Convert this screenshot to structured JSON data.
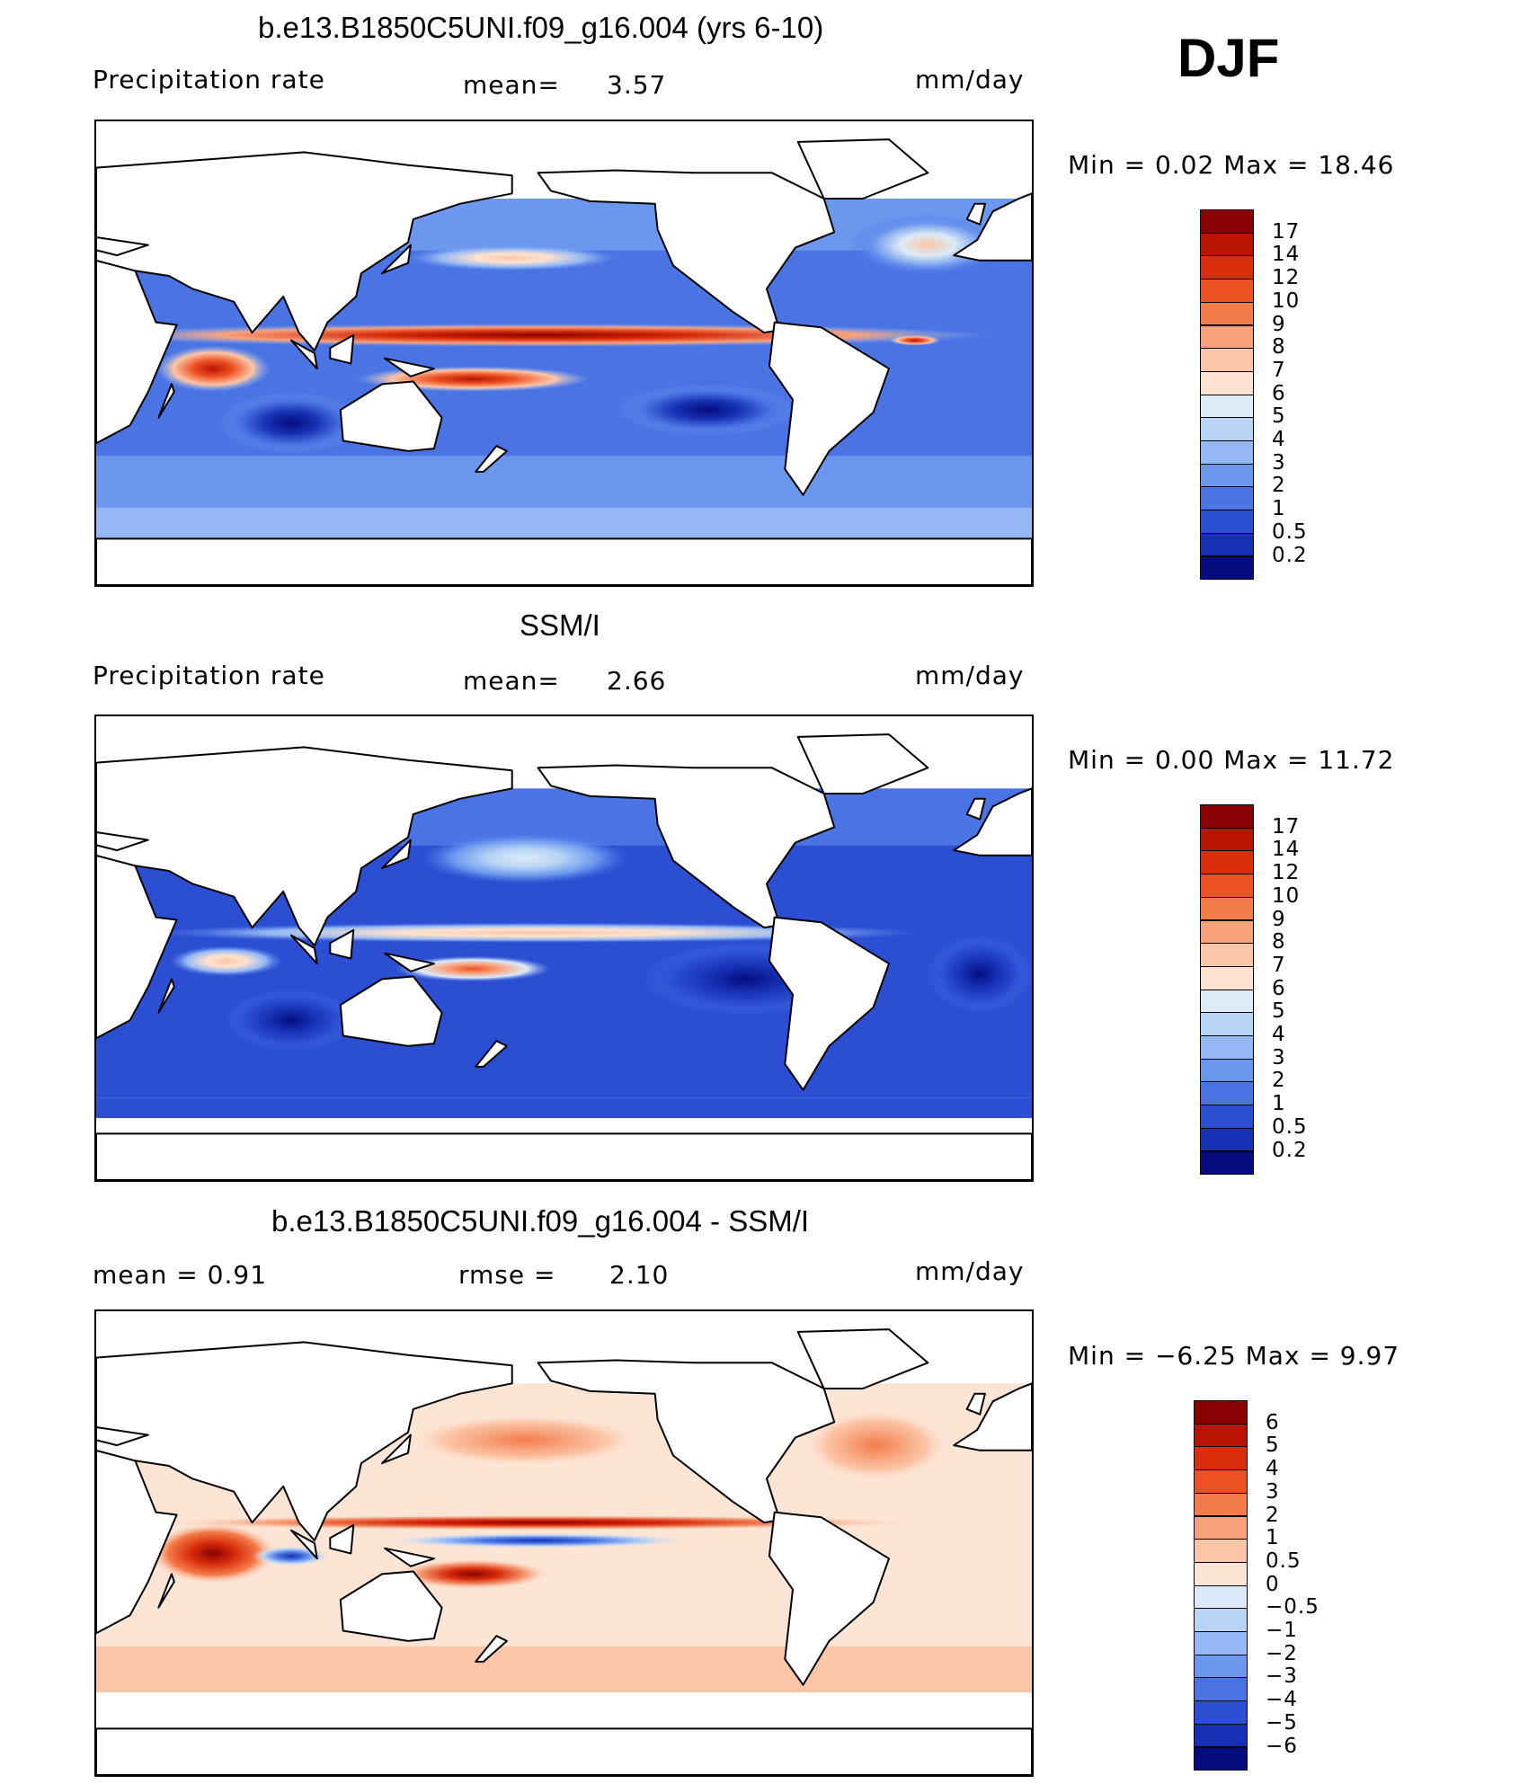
{
  "season": "DJF",
  "panels": [
    {
      "title": "b.e13.B1850C5UNI.f09_g16.004 (yrs 6-10)",
      "left_label": "Precipitation  rate",
      "center_label": "mean=",
      "center_value": "3.57",
      "units": "mm/day",
      "min_max": "Min  =     0.02  Max  =     18.46",
      "colorbar_labels": [
        "17",
        "14",
        "12",
        "10",
        "9",
        "8",
        "7",
        "6",
        "5",
        "4",
        "3",
        "2",
        "1",
        "0.5",
        "0.2"
      ],
      "colorbar_colors": [
        "#8b0000",
        "#b81404",
        "#d92d0c",
        "#ee5224",
        "#f47c4a",
        "#f8a27c",
        "#fbc6a7",
        "#fde2d0",
        "#dcebf7",
        "#b8d4f5",
        "#93b8f3",
        "#6c97ee",
        "#4a73e4",
        "#2c4ed2",
        "#1630b3",
        "#060c80"
      ]
    },
    {
      "title": "SSM/I",
      "left_label": "Precipitation  rate",
      "center_label": "mean=",
      "center_value": "2.66",
      "units": "mm/day",
      "min_max": "Min  =     0.00  Max  =     11.72",
      "colorbar_labels": [
        "17",
        "14",
        "12",
        "10",
        "9",
        "8",
        "7",
        "6",
        "5",
        "4",
        "3",
        "2",
        "1",
        "0.5",
        "0.2"
      ],
      "colorbar_colors": [
        "#8b0000",
        "#b81404",
        "#d92d0c",
        "#ee5224",
        "#f47c4a",
        "#f8a27c",
        "#fbc6a7",
        "#fde2d0",
        "#dcebf7",
        "#b8d4f5",
        "#93b8f3",
        "#6c97ee",
        "#4a73e4",
        "#2c4ed2",
        "#1630b3",
        "#060c80"
      ]
    },
    {
      "title": "b.e13.B1850C5UNI.f09_g16.004 - SSM/I",
      "left_label": "mean  =     0.91",
      "center_label": "rmse  =",
      "center_value": "2.10",
      "units": "mm/day",
      "min_max": "Min  =   −6.25  Max  =      9.97",
      "colorbar_labels": [
        "6",
        "5",
        "4",
        "3",
        "2",
        "1",
        "0.5",
        "0",
        "−0.5",
        "−1",
        "−2",
        "−3",
        "−4",
        "−5",
        "−6"
      ],
      "colorbar_colors": [
        "#8b0000",
        "#b81404",
        "#d92d0c",
        "#ee5224",
        "#f47c4a",
        "#f8a27c",
        "#fbc6a7",
        "#fde5d6",
        "#dce9f8",
        "#b8d4f5",
        "#93b8f3",
        "#6c97ee",
        "#4a73e4",
        "#2c4ed2",
        "#1630b3",
        "#060c80"
      ]
    }
  ],
  "chart_data": [
    {
      "type": "heatmap",
      "title": "b.e13.B1850C5UNI.f09_g16.004 (yrs 6-10)",
      "variable": "Precipitation  rate",
      "units": "mm/day",
      "mean": 3.57,
      "min": 0.02,
      "max": 18.46,
      "levels": [
        0.2,
        0.5,
        1,
        2,
        3,
        4,
        5,
        6,
        7,
        8,
        9,
        10,
        12,
        14,
        17
      ]
    },
    {
      "type": "heatmap",
      "title": "SSM/I",
      "variable": "Precipitation  rate",
      "units": "mm/day",
      "mean": 2.66,
      "min": 0.0,
      "max": 11.72,
      "levels": [
        0.2,
        0.5,
        1,
        2,
        3,
        4,
        5,
        6,
        7,
        8,
        9,
        10,
        12,
        14,
        17
      ]
    },
    {
      "type": "heatmap",
      "title": "b.e13.B1850C5UNI.f09_g16.004 - SSM/I",
      "units": "mm/day",
      "mean": 0.91,
      "rmse": 2.1,
      "min": -6.25,
      "max": 9.97,
      "levels": [
        -6,
        -5,
        -4,
        -3,
        -2,
        -1,
        -0.5,
        0,
        0.5,
        1,
        2,
        3,
        4,
        5,
        6
      ]
    }
  ]
}
